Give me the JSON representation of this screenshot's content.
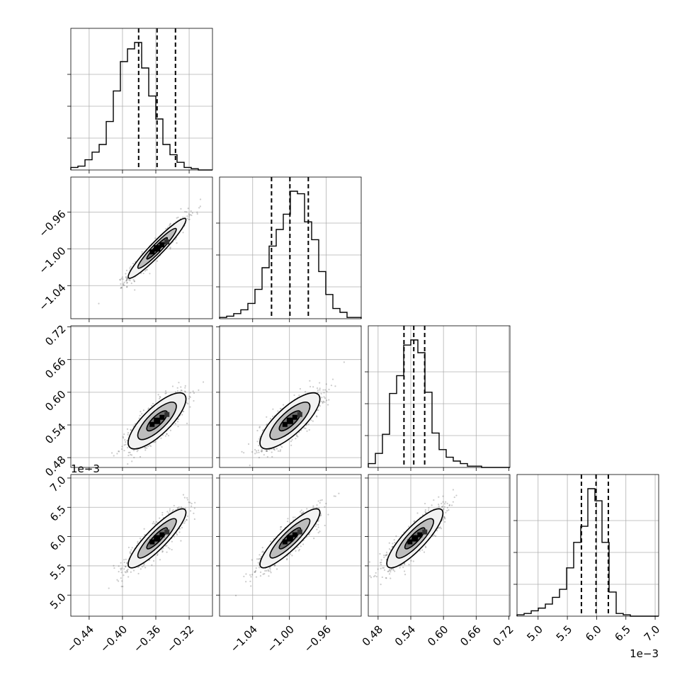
{
  "chart_data": {
    "type": "corner",
    "title": "",
    "grid": true,
    "parameters": [
      {
        "index": 0,
        "ticks": [
          -0.44,
          -0.4,
          -0.36,
          -0.32
        ],
        "tick_labels": [
          "−0.44",
          "−0.40",
          "−0.36",
          "−0.32"
        ],
        "range": [
          -0.462,
          -0.292
        ],
        "quantiles": [
          -0.3806,
          -0.3585,
          -0.3364
        ],
        "histogram": [
          2,
          3,
          8,
          14,
          20,
          38,
          62,
          85,
          95,
          100,
          80,
          58,
          40,
          20,
          12,
          6,
          2,
          1,
          0,
          0
        ]
      },
      {
        "index": 1,
        "ticks": [
          -1.04,
          -1.0,
          -0.96
        ],
        "tick_labels": [
          "−1.04",
          "−1.00",
          "−0.96"
        ],
        "range": [
          -1.076,
          -0.922
        ],
        "quantiles": [
          -1.0195,
          -0.9995,
          -0.9795
        ],
        "histogram": [
          1,
          2,
          4,
          7,
          12,
          23,
          40,
          57,
          70,
          82,
          100,
          98,
          76,
          62,
          37,
          19,
          8,
          5,
          1,
          1
        ]
      },
      {
        "index": 2,
        "ticks": [
          0.48,
          0.54,
          0.6,
          0.66,
          0.72
        ],
        "tick_labels": [
          "0.48",
          "0.54",
          "0.60",
          "0.66",
          "0.72"
        ],
        "range": [
          0.462,
          0.722
        ],
        "quantiles": [
          0.5275,
          0.5455,
          0.5655
        ],
        "histogram": [
          3,
          11,
          26,
          58,
          72,
          96,
          100,
          90,
          59,
          27,
          14,
          8,
          5,
          3,
          1,
          1,
          0,
          0,
          0,
          0
        ]
      },
      {
        "index": 3,
        "ticks": [
          5.0,
          5.5,
          6.0,
          6.5,
          7.0
        ],
        "tick_labels": [
          "5.0",
          "5.5",
          "6.0",
          "6.5",
          "7.0"
        ],
        "range": [
          4.64,
          7.06
        ],
        "quantiles": [
          5.74,
          5.99,
          6.2
        ],
        "histogram": [
          1,
          2,
          4,
          6,
          9,
          14,
          20,
          36,
          55,
          67,
          95,
          86,
          55,
          18,
          2,
          1,
          0,
          0,
          0,
          0
        ],
        "offset_label": "1e−3"
      }
    ],
    "y_axis_rows": [
      1,
      2,
      3
    ],
    "x_axis_columns": [
      0,
      1,
      2,
      3
    ],
    "pairs": [
      {
        "row": 1,
        "col": 0,
        "mean": [
          -0.3585,
          -0.9995
        ],
        "sd": [
          0.0165,
          0.0155
        ],
        "rho": 0.95
      },
      {
        "row": 2,
        "col": 0,
        "mean": [
          -0.3585,
          0.5475
        ],
        "sd": [
          0.0165,
          0.0245
        ],
        "rho": 0.78
      },
      {
        "row": 2,
        "col": 1,
        "mean": [
          -0.9995,
          0.5475
        ],
        "sd": [
          0.0155,
          0.0245
        ],
        "rho": 0.78
      },
      {
        "row": 3,
        "col": 0,
        "mean": [
          -0.3585,
          5.97
        ],
        "sd": [
          0.0165,
          0.24
        ],
        "rho": 0.88
      },
      {
        "row": 3,
        "col": 1,
        "mean": [
          -0.9995,
          5.97
        ],
        "sd": [
          0.0155,
          0.24
        ],
        "rho": 0.88
      },
      {
        "row": 3,
        "col": 2,
        "mean": [
          0.5475,
          5.97
        ],
        "sd": [
          0.0245,
          0.24
        ],
        "rho": 0.85
      }
    ],
    "contour_levels": [
      0.5,
      1.0,
      1.5
    ],
    "scatter_color": "#444444",
    "line_color": "#000000",
    "grid_color": "#b0b0b0"
  }
}
